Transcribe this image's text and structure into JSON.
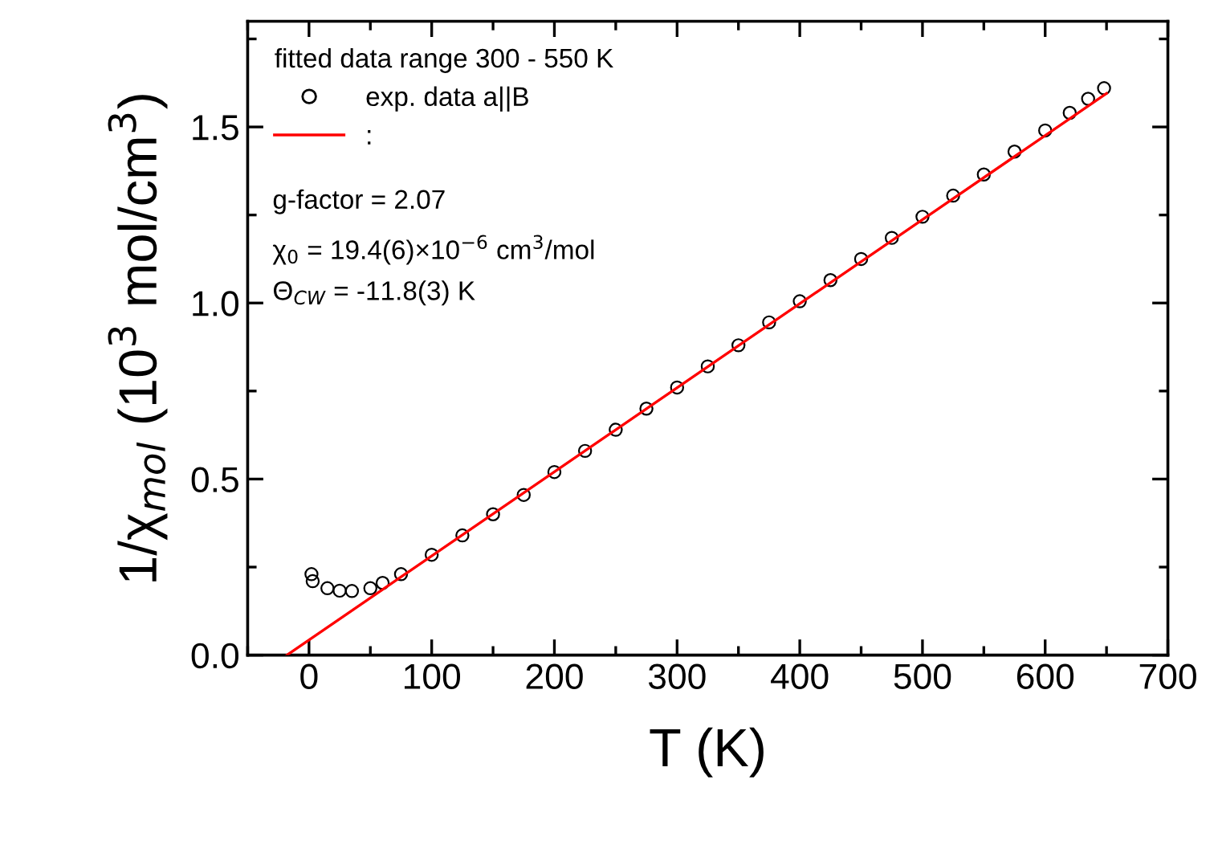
{
  "chart_data": {
    "type": "scatter",
    "xlabel": "T (K)",
    "ylabel": "1/χ$_{mol}$ (10$^{3}$ mol/cm$^{3}$)",
    "legend_title": "fitted data range 300 - 550 K",
    "legend": "top left",
    "grid": false,
    "xlim": [
      -50,
      700
    ],
    "xticks": [
      0,
      100,
      200,
      300,
      400,
      500,
      600,
      700
    ],
    "ylim": [
      0,
      1.8
    ],
    "yticks": [
      {
        "value": 0,
        "label": "0.0"
      },
      {
        "value": 0.5,
        "label": "0.5"
      },
      {
        "value": 1,
        "label": "1.0"
      },
      {
        "value": 1.5,
        "label": "1.5"
      }
    ],
    "series": [
      {
        "name": "exp. data a||B",
        "marker": "circle",
        "color": "#000000",
        "x": [
          2,
          3,
          15,
          25,
          35,
          50,
          60,
          75,
          100,
          125,
          150,
          175,
          200,
          225,
          250,
          275,
          300,
          325,
          350,
          375,
          400,
          425,
          450,
          475,
          500,
          525,
          550,
          575,
          600,
          620,
          635,
          648
        ],
        "values": [
          0.23,
          0.21,
          0.19,
          0.183,
          0.182,
          0.19,
          0.205,
          0.23,
          0.285,
          0.34,
          0.4,
          0.455,
          0.52,
          0.58,
          0.64,
          0.7,
          0.76,
          0.82,
          0.88,
          0.945,
          1.005,
          1.065,
          1.125,
          1.185,
          1.245,
          1.305,
          1.365,
          1.43,
          1.49,
          1.54,
          1.58,
          1.61
        ]
      },
      {
        "name": ":",
        "type": "line",
        "marker": "none",
        "color": "#ff0000",
        "line_style": "solid",
        "x": [
          -18,
          650
        ],
        "values": [
          0,
          1.595
        ]
      }
    ],
    "annotations": [
      "g-factor = 2.07",
      "χ$_{0}$ = 19.4(6)×10$^{−6}$ cm$^{3}$/mol",
      "Θ$_{CW}$ = -11.8(3) K"
    ]
  }
}
